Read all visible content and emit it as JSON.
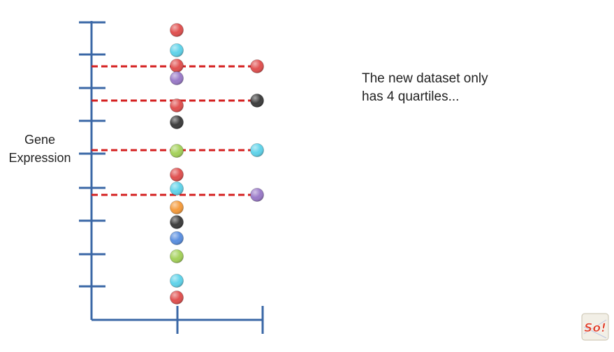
{
  "diagram": {
    "ylabel_line1": "Gene",
    "ylabel_line2": "Expression",
    "note_line1": "The new dataset only",
    "note_line2": "has 4 quartiles...",
    "axis_color": "#3a67a6",
    "dashed_color": "#d41f1f",
    "colors": {
      "red": "#e0504f",
      "cyan": "#5fd3ea",
      "purple": "#9a7ac8",
      "black": "#3c3c3c",
      "green": "#a4d15a",
      "orange": "#f59b3c",
      "blue": "#5a8fe0"
    },
    "left_column_colors": [
      "red",
      "cyan",
      "red",
      "purple",
      "red",
      "black",
      "green",
      "red",
      "cyan",
      "orange",
      "black",
      "blue",
      "green",
      "cyan",
      "red"
    ],
    "right_column_colors": [
      "red",
      "black",
      "cyan",
      "purple"
    ],
    "quartile_count": 4,
    "logo_text": "So!"
  }
}
